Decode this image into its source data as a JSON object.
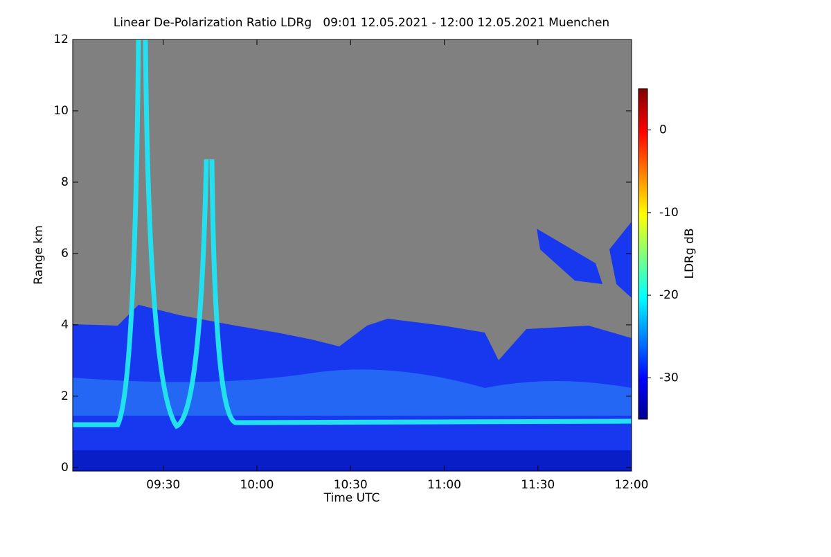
{
  "chart_data": {
    "type": "heatmap",
    "title": "Linear De-Polarization Ratio LDRg   09:01 12.05.2021 - 12:00 12.05.2021 Muenchen",
    "x_label": "Time UTC",
    "y_label": "Range km",
    "xlim": [
      541,
      720
    ],
    "xticks": [
      {
        "value": 570,
        "label": "09:30"
      },
      {
        "value": 600,
        "label": "10:00"
      },
      {
        "value": 630,
        "label": "10:30"
      },
      {
        "value": 660,
        "label": "11:00"
      },
      {
        "value": 690,
        "label": "11:30"
      },
      {
        "value": 720,
        "label": "12:00"
      }
    ],
    "ylim": [
      -0.1,
      12
    ],
    "yticks": [
      0,
      2,
      4,
      6,
      8,
      10,
      12
    ],
    "colorbar": {
      "label": "LDRg dB",
      "lim": [
        -35,
        5
      ],
      "ticks": [
        0,
        -10,
        -20,
        -30
      ]
    }
  }
}
